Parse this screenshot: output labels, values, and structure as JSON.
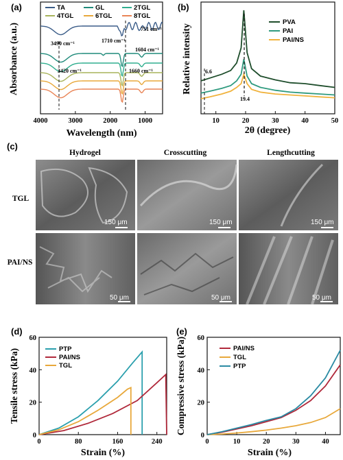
{
  "panels": {
    "a": {
      "label": "(a)"
    },
    "b": {
      "label": "(b)"
    },
    "c": {
      "label": "(c)"
    },
    "d": {
      "label": "(d)"
    },
    "e": {
      "label": "(e)"
    }
  },
  "sem": {
    "columns": [
      "Hydrogel",
      "Crosscutting",
      "Lengthcutting"
    ],
    "rows": [
      "TGL",
      "PAI/NS"
    ],
    "scale_bars": [
      [
        "150 μm",
        "150 μm",
        "150 μm"
      ],
      [
        "50 μm",
        "50 μm",
        "50 μm"
      ]
    ]
  },
  "chart_data": [
    {
      "id": "a",
      "type": "line",
      "xlabel": "Wavelength (nm)",
      "ylabel": "Absorbance (a.u.)",
      "xlim": [
        4000,
        500
      ],
      "xticks": [
        4000,
        3000,
        2000,
        1000
      ],
      "legend": [
        "TA",
        "GL",
        "2TGL",
        "4TGL",
        "6TGL",
        "8TGL"
      ],
      "annotations": [
        "3490 cm⁻¹",
        "1710 cm⁻¹",
        "1604 cm⁻¹",
        "751 cm⁻¹",
        "3420 cm⁻¹",
        "1660 cm⁻¹"
      ],
      "series": [
        {
          "name": "TA",
          "color": "#3a5c88",
          "offset": 5
        },
        {
          "name": "GL",
          "color": "#1f8a7a",
          "offset": 4
        },
        {
          "name": "2TGL",
          "color": "#2fae8e",
          "offset": 3
        },
        {
          "name": "4TGL",
          "color": "#a7b35a",
          "offset": 2
        },
        {
          "name": "6TGL",
          "color": "#e8a83a",
          "offset": 1
        },
        {
          "name": "8TGL",
          "color": "#e98456",
          "offset": 0
        }
      ]
    },
    {
      "id": "b",
      "type": "line",
      "xlabel": "2θ (degree)",
      "ylabel": "Relative intensity",
      "xlim": [
        5,
        50
      ],
      "xticks": [
        10,
        20,
        30,
        40,
        50
      ],
      "annotations": [
        "6.6",
        "19.4"
      ],
      "series": [
        {
          "name": "PVA",
          "color": "#1e4d2b",
          "x": [
            5,
            8,
            12,
            15,
            17,
            18.5,
            19.4,
            20.5,
            22,
            25,
            30,
            35,
            40,
            45,
            50
          ],
          "y": [
            0.55,
            0.58,
            0.62,
            0.66,
            0.74,
            0.9,
            1.3,
            0.85,
            0.68,
            0.6,
            0.56,
            0.53,
            0.52,
            0.5,
            0.48
          ]
        },
        {
          "name": "PAI",
          "color": "#2e9a7e",
          "x": [
            5,
            8,
            12,
            15,
            17,
            18.5,
            19.4,
            20.5,
            22,
            25,
            30,
            35,
            40,
            45,
            50
          ],
          "y": [
            0.42,
            0.44,
            0.47,
            0.5,
            0.55,
            0.62,
            0.78,
            0.6,
            0.52,
            0.48,
            0.45,
            0.43,
            0.42,
            0.41,
            0.4
          ]
        },
        {
          "name": "PAI/NS",
          "color": "#f0b23c",
          "x": [
            5,
            8,
            12,
            15,
            17,
            18.5,
            19.4,
            20.5,
            22,
            25,
            30,
            35,
            40,
            45,
            50
          ],
          "y": [
            0.36,
            0.38,
            0.41,
            0.44,
            0.48,
            0.52,
            0.62,
            0.52,
            0.46,
            0.43,
            0.41,
            0.4,
            0.39,
            0.38,
            0.37
          ]
        }
      ]
    },
    {
      "id": "d",
      "type": "line",
      "xlabel": "Strain (%)",
      "ylabel": "Tensile stress (kPa)",
      "xlim": [
        0,
        260
      ],
      "ylim": [
        0,
        60
      ],
      "xticks": [
        0,
        80,
        160,
        240
      ],
      "yticks": [
        0,
        20,
        40,
        60
      ],
      "series": [
        {
          "name": "PTP",
          "color": "#2a9fad",
          "x": [
            0,
            40,
            80,
            120,
            160,
            190,
            210,
            210
          ],
          "y": [
            0,
            4,
            11,
            21,
            33,
            44,
            51,
            0
          ]
        },
        {
          "name": "PAI/NS",
          "color": "#b0283a",
          "x": [
            0,
            50,
            100,
            150,
            200,
            240,
            258,
            260
          ],
          "y": [
            0,
            2.5,
            7,
            13,
            21,
            32,
            37,
            0
          ]
        },
        {
          "name": "TGL",
          "color": "#e8a83a",
          "x": [
            0,
            40,
            80,
            120,
            160,
            180,
            187,
            187
          ],
          "y": [
            0,
            3,
            8,
            15,
            23,
            28,
            29,
            0
          ]
        }
      ]
    },
    {
      "id": "e",
      "type": "line",
      "xlabel": "Strain (%)",
      "ylabel": "Compressive stress (kPa)",
      "xlim": [
        0,
        45
      ],
      "ylim": [
        0,
        60
      ],
      "xticks": [
        0,
        10,
        20,
        30,
        40
      ],
      "yticks": [
        0,
        20,
        40,
        60
      ],
      "series": [
        {
          "name": "PAI/NS",
          "color": "#b0283a",
          "x": [
            0,
            5,
            10,
            15,
            20,
            25,
            30,
            35,
            40,
            45
          ],
          "y": [
            0,
            1.5,
            3.5,
            5.5,
            8,
            10.5,
            15,
            21,
            30,
            43
          ]
        },
        {
          "name": "TGL",
          "color": "#e8a83a",
          "x": [
            0,
            5,
            10,
            15,
            20,
            25,
            30,
            35,
            40,
            45
          ],
          "y": [
            0,
            0.4,
            1,
            1.8,
            2.8,
            4,
            5.5,
            7.5,
            10.5,
            16
          ]
        },
        {
          "name": "PTP",
          "color": "#2a8aa3",
          "x": [
            0,
            5,
            10,
            15,
            20,
            25,
            30,
            35,
            40,
            45
          ],
          "y": [
            0,
            1.8,
            4,
            6.2,
            8.8,
            11,
            16,
            24,
            35,
            52
          ]
        }
      ]
    }
  ]
}
